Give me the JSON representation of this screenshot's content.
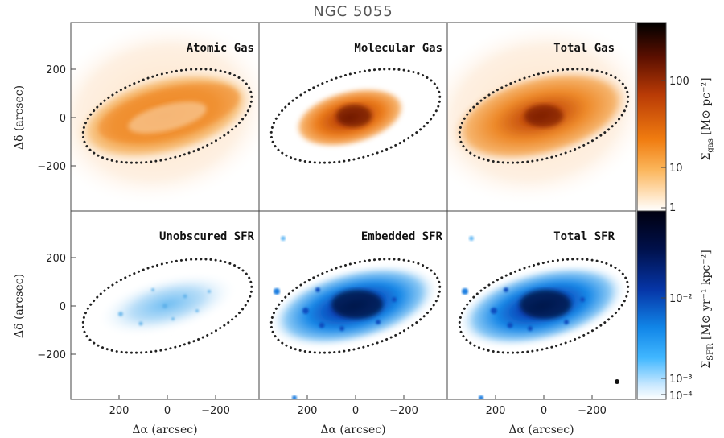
{
  "figure": {
    "title": "NGC 5055",
    "x_label": "Δα (arcsec)",
    "y_label": "Δδ (arcsec)",
    "x_ticks": [
      "200",
      "0",
      "−200"
    ],
    "y_ticks": [
      "200",
      "0",
      "−200"
    ]
  },
  "panels": [
    {
      "id": "atomic",
      "title": "Atomic Gas",
      "row": "gas"
    },
    {
      "id": "molecular",
      "title": "Molecular Gas",
      "row": "gas"
    },
    {
      "id": "totalgas",
      "title": "Total Gas",
      "row": "gas"
    },
    {
      "id": "unobscured",
      "title": "Unobscured SFR",
      "row": "sfr"
    },
    {
      "id": "embedded",
      "title": "Embedded SFR",
      "row": "sfr"
    },
    {
      "id": "totalsfr",
      "title": "Total SFR",
      "row": "sfr"
    }
  ],
  "colorbars": {
    "gas": {
      "label_main": "Σ",
      "label_sub": "gas",
      "label_units": " [M⊙ pc⁻²]",
      "ticks": [
        "100",
        "10",
        "1"
      ],
      "colors": [
        "#000000",
        "#5a0f00",
        "#b83a06",
        "#f07c10",
        "#fbb55a",
        "#ffe4c2",
        "#ffffff"
      ]
    },
    "sfr": {
      "label_main": "Σ",
      "label_sub": "SFR",
      "label_units": " [M⊙ yr⁻¹ kpc⁻²]",
      "ticks": [
        "10⁻²",
        "10⁻³",
        "10⁻⁴"
      ],
      "colors": [
        "#000010",
        "#00104a",
        "#0636a8",
        "#1186e8",
        "#41b7ff",
        "#c6e7ff",
        "#ffffff"
      ]
    }
  }
}
